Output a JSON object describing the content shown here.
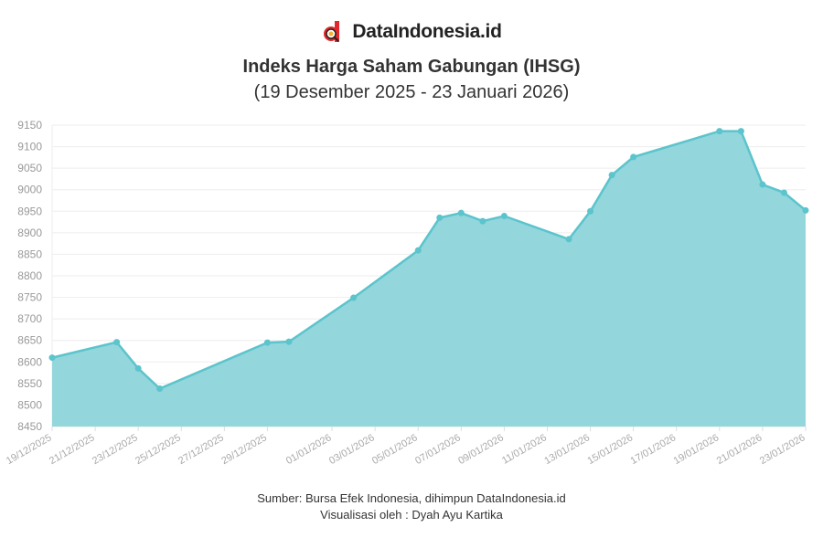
{
  "brand": {
    "name": "DataIndonesia.id",
    "logo_color": "#e3262b"
  },
  "chart_data": {
    "type": "area",
    "title": "Indeks Harga Saham Gabungan (IHSG)",
    "subtitle": "(19 Desember 2025 - 23 Januari 2026)",
    "xlabel": "",
    "ylabel": "",
    "ylim": [
      8450,
      9150
    ],
    "y_ticks": [
      8450,
      8500,
      8550,
      8600,
      8650,
      8700,
      8750,
      8800,
      8850,
      8900,
      8950,
      9000,
      9050,
      9100,
      9150
    ],
    "xlim": [
      "19/12/2025",
      "23/01/2026"
    ],
    "x_ticks": [
      "19/12/2025",
      "21/12/2025",
      "23/12/2025",
      "25/12/2025",
      "27/12/2025",
      "29/12/2025",
      "01/01/2026",
      "03/01/2026",
      "05/01/2026",
      "07/01/2026",
      "09/01/2026",
      "11/01/2026",
      "13/01/2026",
      "15/01/2026",
      "17/01/2026",
      "19/01/2026",
      "21/01/2026",
      "23/01/2026"
    ],
    "grid": true,
    "colors": {
      "line": "#5bc4cc",
      "fill": "#93d6dc"
    },
    "x": [
      "19/12/2025",
      "22/12/2025",
      "23/12/2025",
      "24/12/2025",
      "29/12/2025",
      "30/12/2025",
      "02/01/2026",
      "05/01/2026",
      "06/01/2026",
      "07/01/2026",
      "08/01/2026",
      "09/01/2026",
      "12/01/2026",
      "13/01/2026",
      "14/01/2026",
      "15/01/2026",
      "19/01/2026",
      "20/01/2026",
      "21/01/2026",
      "22/01/2026",
      "23/01/2026"
    ],
    "values": [
      8610,
      8646,
      8585,
      8538,
      8645,
      8647,
      8749,
      8859,
      8935,
      8946,
      8927,
      8939,
      8885,
      8950,
      9034,
      9076,
      9136,
      9136,
      9012,
      8993,
      8952
    ]
  },
  "footer": {
    "source": "Sumber: Bursa Efek Indonesia, dihimpun DataIndonesia.id",
    "credit": "Visualisasi oleh : Dyah Ayu Kartika"
  }
}
